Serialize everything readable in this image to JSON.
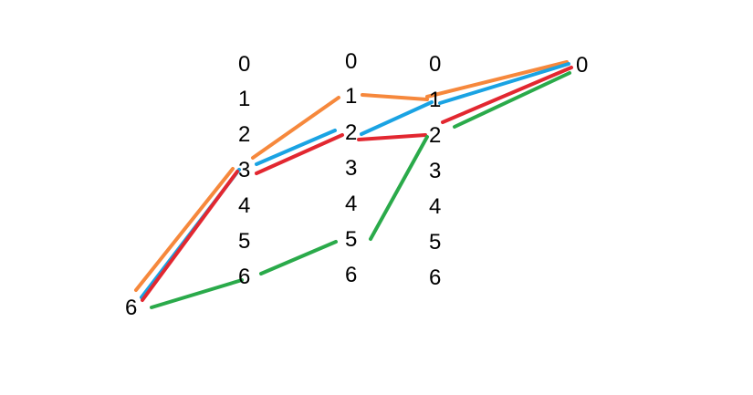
{
  "columns": [
    {
      "id": "col_a",
      "labels": [
        "0",
        "1",
        "2",
        "3",
        "4",
        "5",
        "6"
      ]
    },
    {
      "id": "col_b",
      "labels": [
        "0",
        "1",
        "2",
        "3",
        "4",
        "5",
        "6"
      ]
    },
    {
      "id": "col_c",
      "labels": [
        "0",
        "1",
        "2",
        "3",
        "4",
        "5",
        "6"
      ]
    }
  ],
  "source_label": "6",
  "target_label": "0",
  "colors": {
    "orange": "#f6883c",
    "blue": "#1aa3e3",
    "red": "#e22730",
    "green": "#2aaa4a"
  },
  "paths": [
    {
      "color_name": "orange",
      "stops": [
        "source:6",
        "col_a:3",
        "col_b:1",
        "col_c:1",
        "target:0"
      ]
    },
    {
      "color_name": "blue",
      "stops": [
        "source:6",
        "col_a:3",
        "col_b:2",
        "col_c:1",
        "target:0"
      ]
    },
    {
      "color_name": "red",
      "stops": [
        "source:6",
        "col_a:3",
        "col_b:2",
        "col_c:2",
        "target:0"
      ]
    },
    {
      "color_name": "green",
      "stops": [
        "source:6",
        "col_a:6",
        "col_b:5",
        "col_c:2",
        "target:0"
      ]
    }
  ]
}
